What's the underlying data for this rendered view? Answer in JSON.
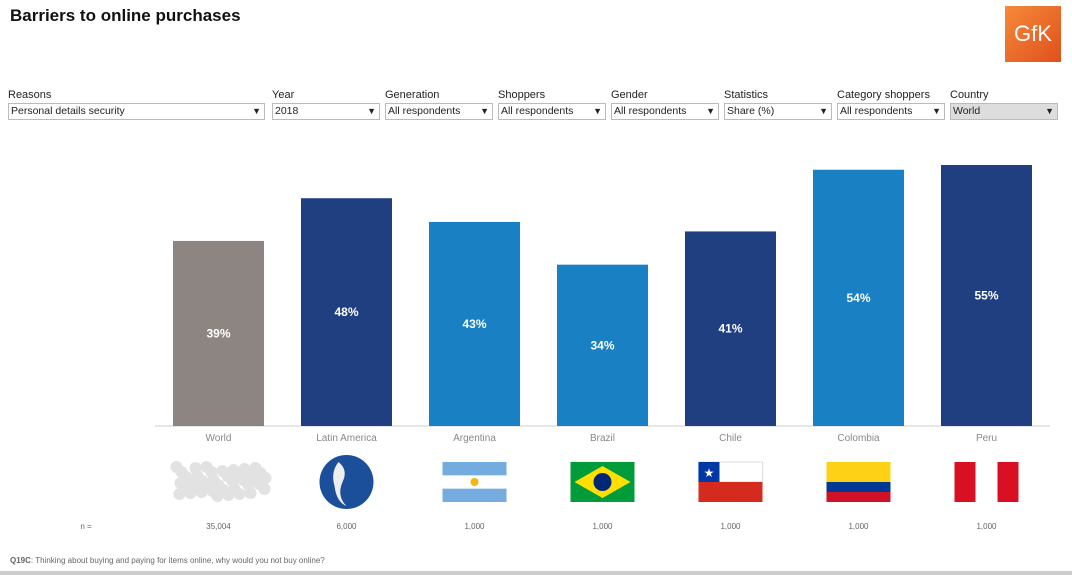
{
  "title": "Barriers to online purchases",
  "logo": "GfK",
  "filters": [
    {
      "label": "Reasons",
      "value": "Personal details security"
    },
    {
      "label": "Year",
      "value": "2018"
    },
    {
      "label": "Generation",
      "value": "All respondents"
    },
    {
      "label": "Shoppers",
      "value": "All respondents"
    },
    {
      "label": "Gender",
      "value": "All respondents"
    },
    {
      "label": "Statistics",
      "value": "Share (%)"
    },
    {
      "label": "Category shoppers",
      "value": "All respondents"
    },
    {
      "label": "Country",
      "value": "World",
      "icon": "filter-icon"
    }
  ],
  "colors": {
    "world": "#8c8581",
    "dark": "#1f3f80",
    "light": "#1a80c4"
  },
  "chart_data": {
    "type": "bar",
    "categories": [
      "World",
      "Latin America",
      "Argentina",
      "Brazil",
      "Chile",
      "Colombia",
      "Peru"
    ],
    "values": [
      39,
      48,
      43,
      34,
      41,
      54,
      55
    ],
    "data_labels": [
      "39%",
      "48%",
      "43%",
      "34%",
      "41%",
      "54%",
      "55%"
    ],
    "bar_colors": [
      "#8c8581",
      "#1f3f80",
      "#1a80c4",
      "#1a80c4",
      "#1f3f80",
      "#1a80c4",
      "#1f3f80"
    ],
    "flags": [
      "world-map",
      "globe",
      "argentina",
      "brazil",
      "chile",
      "colombia",
      "peru"
    ],
    "ylim": [
      0,
      55
    ],
    "grid": false,
    "n_label": "n =",
    "n_values": [
      "35,004",
      "6,000",
      "1,000",
      "1,000",
      "1,000",
      "1,000",
      "1,000"
    ]
  },
  "footer": {
    "code": "Q19C",
    "text": ": Thinking about buying and paying for items online, why would you not buy online?"
  }
}
